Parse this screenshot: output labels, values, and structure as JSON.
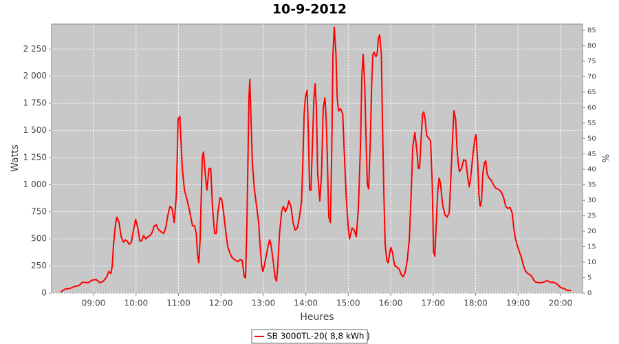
{
  "chart_data": {
    "type": "line",
    "title": "10-9-2012",
    "x_label": "Heures",
    "y_label": "Watts",
    "y2_label": "%",
    "xlim": [
      8.01,
      20.52
    ],
    "xticks": [
      {
        "value": 9,
        "label": "09:00"
      },
      {
        "value": 10,
        "label": "10:00"
      },
      {
        "value": 11,
        "label": "11:00"
      },
      {
        "value": 12,
        "label": "12:00"
      },
      {
        "value": 13,
        "label": "13:00"
      },
      {
        "value": 14,
        "label": "14:00"
      },
      {
        "value": 15,
        "label": "15:00"
      },
      {
        "value": 16,
        "label": "16:00"
      },
      {
        "value": 17,
        "label": "17:00"
      },
      {
        "value": 18,
        "label": "18:00"
      },
      {
        "value": 19,
        "label": "19:00"
      },
      {
        "value": 20,
        "label": "20:00"
      }
    ],
    "ylim": [
      0,
      2480
    ],
    "yticks": [
      0,
      250,
      500,
      750,
      {
        "value": 1000,
        "label": "1 000"
      },
      {
        "value": 1250,
        "label": "1 250"
      },
      {
        "value": 1500,
        "label": "1 500"
      },
      {
        "value": 1750,
        "label": "1 750"
      },
      {
        "value": 2000,
        "label": "2 000"
      },
      {
        "value": 2250,
        "label": "2 250"
      }
    ],
    "y2lim": [
      0,
      87
    ],
    "y2ticks": [
      0,
      5,
      10,
      15,
      20,
      25,
      30,
      35,
      40,
      45,
      50,
      55,
      60,
      65,
      70,
      75,
      80,
      85
    ],
    "grid": true,
    "legend": "bottom",
    "x": [
      8.22,
      8.34,
      8.42,
      8.55,
      8.66,
      8.74,
      8.87,
      8.97,
      9.06,
      9.15,
      9.23,
      9.31,
      9.36,
      9.41,
      9.44,
      9.47,
      9.52,
      9.55,
      9.6,
      9.65,
      9.7,
      9.75,
      9.79,
      9.84,
      9.89,
      9.94,
      9.99,
      10.04,
      10.09,
      10.13,
      10.18,
      10.23,
      10.28,
      10.33,
      10.38,
      10.43,
      10.48,
      10.52,
      10.57,
      10.65,
      10.7,
      10.75,
      10.8,
      10.85,
      10.9,
      10.95,
      10.99,
      11.03,
      11.06,
      11.09,
      11.14,
      11.19,
      11.24,
      11.29,
      11.33,
      11.38,
      11.42,
      11.45,
      11.48,
      11.51,
      11.56,
      11.59,
      11.63,
      11.67,
      11.72,
      11.76,
      11.8,
      11.85,
      11.89,
      11.93,
      11.98,
      12.02,
      12.06,
      12.11,
      12.16,
      12.21,
      12.26,
      12.31,
      12.36,
      12.4,
      12.45,
      12.5,
      12.55,
      12.58,
      12.61,
      12.66,
      12.68,
      12.71,
      12.74,
      12.79,
      12.84,
      12.89,
      12.92,
      12.96,
      12.99,
      13.02,
      13.07,
      13.12,
      13.15,
      13.18,
      13.23,
      13.28,
      13.31,
      13.34,
      13.38,
      13.43,
      13.47,
      13.52,
      13.57,
      13.6,
      13.65,
      13.7,
      13.75,
      13.8,
      13.85,
      13.9,
      13.93,
      13.96,
      13.99,
      14.03,
      14.06,
      14.09,
      14.12,
      14.15,
      14.19,
      14.22,
      14.25,
      14.28,
      14.33,
      14.37,
      14.41,
      14.45,
      14.48,
      14.51,
      14.54,
      14.58,
      14.61,
      14.64,
      14.67,
      14.71,
      14.74,
      14.77,
      14.82,
      14.87,
      14.9,
      14.95,
      15.0,
      15.03,
      15.06,
      15.09,
      15.14,
      15.19,
      15.24,
      15.29,
      15.32,
      15.35,
      15.39,
      15.42,
      15.45,
      15.48,
      15.52,
      15.55,
      15.58,
      15.61,
      15.65,
      15.68,
      15.71,
      15.74,
      15.78,
      15.81,
      15.84,
      15.87,
      15.91,
      15.94,
      15.97,
      16.0,
      16.04,
      16.07,
      16.1,
      16.15,
      16.2,
      16.25,
      16.29,
      16.34,
      16.39,
      16.44,
      16.49,
      16.52,
      16.57,
      16.62,
      16.65,
      16.68,
      16.72,
      16.75,
      16.78,
      16.81,
      16.85,
      16.89,
      16.94,
      16.98,
      17.01,
      17.04,
      17.07,
      17.11,
      17.14,
      17.17,
      17.2,
      17.23,
      17.28,
      17.33,
      17.38,
      17.41,
      17.46,
      17.49,
      17.53,
      17.56,
      17.59,
      17.62,
      17.67,
      17.72,
      17.77,
      17.82,
      17.85,
      17.88,
      17.93,
      17.98,
      18.01,
      18.05,
      18.08,
      18.11,
      18.14,
      18.17,
      18.21,
      18.24,
      18.27,
      18.32,
      18.37,
      18.42,
      18.47,
      18.52,
      18.56,
      18.61,
      18.66,
      18.71,
      18.76,
      18.81,
      18.86,
      18.9,
      18.94,
      18.99,
      19.03,
      19.08,
      19.13,
      19.18,
      19.23,
      19.28,
      19.33,
      19.37,
      19.42,
      19.52,
      19.6,
      19.68,
      19.76,
      19.84,
      19.93,
      20.01,
      20.09,
      20.17,
      20.25
    ],
    "series": [
      {
        "name": "SB 3000TL-20( 8,8 kWh )",
        "color": "#ff0000",
        "values": [
          10,
          40,
          40,
          60,
          70,
          100,
          95,
          120,
          125,
          95,
          110,
          150,
          200,
          180,
          250,
          450,
          650,
          700,
          650,
          520,
          470,
          490,
          480,
          450,
          470,
          580,
          680,
          600,
          480,
          480,
          530,
          500,
          520,
          530,
          560,
          620,
          630,
          590,
          570,
          550,
          600,
          720,
          800,
          780,
          650,
          900,
          1600,
          1630,
          1400,
          1150,
          950,
          880,
          800,
          700,
          620,
          620,
          550,
          350,
          280,
          500,
          1250,
          1300,
          1100,
          950,
          1150,
          1150,
          800,
          550,
          550,
          750,
          880,
          860,
          750,
          580,
          430,
          370,
          330,
          310,
          300,
          290,
          310,
          300,
          150,
          140,
          600,
          1800,
          1970,
          1600,
          1200,
          950,
          800,
          650,
          450,
          250,
          200,
          250,
          350,
          450,
          490,
          450,
          300,
          140,
          110,
          250,
          550,
          750,
          800,
          750,
          800,
          850,
          800,
          650,
          580,
          600,
          700,
          850,
          1200,
          1650,
          1800,
          1870,
          1500,
          950,
          950,
          1300,
          1800,
          1930,
          1700,
          1100,
          850,
          1100,
          1700,
          1800,
          1600,
          1200,
          700,
          650,
          1300,
          2200,
          2450,
          2200,
          1800,
          1680,
          1700,
          1650,
          1350,
          900,
          600,
          500,
          550,
          600,
          580,
          520,
          800,
          1400,
          2000,
          2200,
          1900,
          1400,
          1000,
          960,
          1400,
          1900,
          2200,
          2220,
          2180,
          2200,
          2350,
          2380,
          2200,
          1500,
          900,
          450,
          300,
          280,
          350,
          420,
          380,
          300,
          250,
          240,
          220,
          170,
          150,
          190,
          300,
          500,
          1000,
          1350,
          1480,
          1300,
          1150,
          1150,
          1450,
          1650,
          1670,
          1600,
          1450,
          1430,
          1400,
          1000,
          380,
          340,
          600,
          950,
          1060,
          1020,
          900,
          800,
          720,
          700,
          740,
          1000,
          1450,
          1680,
          1600,
          1350,
          1200,
          1120,
          1150,
          1230,
          1220,
          1050,
          980,
          1050,
          1250,
          1420,
          1460,
          1200,
          900,
          800,
          850,
          1100,
          1200,
          1220,
          1100,
          1060,
          1040,
          1000,
          970,
          960,
          950,
          930,
          880,
          800,
          780,
          790,
          740,
          600,
          500,
          430,
          380,
          330,
          250,
          200,
          180,
          170,
          150,
          120,
          100,
          95,
          100,
          115,
          100,
          100,
          80,
          50,
          40,
          25,
          25
        ]
      }
    ]
  }
}
